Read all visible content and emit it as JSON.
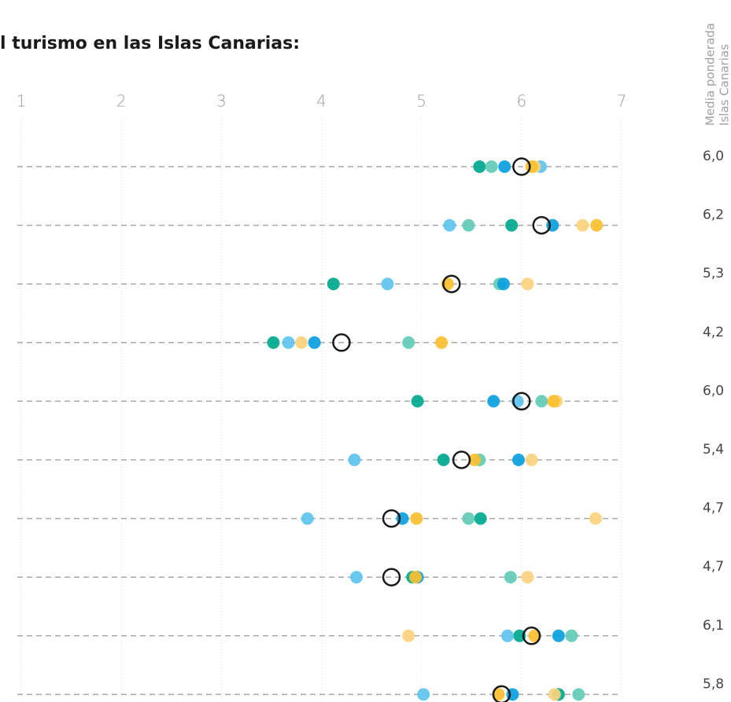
{
  "chart_data": {
    "type": "dot",
    "title": "l turismo en las Islas Canarias:",
    "mean_header": [
      "Media ponderada",
      "Islas Canarias"
    ],
    "categories": [
      null,
      null,
      null,
      null,
      null,
      null,
      null,
      null,
      null,
      null
    ],
    "xlim": [
      1,
      7
    ],
    "xticks": [
      1,
      2,
      3,
      4,
      5,
      6,
      7
    ],
    "grid": true,
    "series": [
      {
        "color": "#00a88e",
        "values": [
          5.58,
          5.9,
          4.12,
          3.52,
          4.96,
          5.22,
          5.59,
          4.91,
          5.98,
          6.37
        ]
      },
      {
        "color": "#62cbb6",
        "values": [
          5.7,
          5.47,
          5.78,
          4.87,
          6.2,
          5.58,
          5.47,
          5.89,
          6.5,
          6.57
        ]
      },
      {
        "color": "#0a9fe0",
        "values": [
          5.83,
          6.31,
          5.82,
          3.93,
          5.72,
          5.97,
          4.81,
          4.96,
          6.37,
          5.91
        ]
      },
      {
        "color": "#5ec4ee",
        "values": [
          6.19,
          5.28,
          4.66,
          3.67,
          5.96,
          4.33,
          3.86,
          4.35,
          5.86,
          5.02
        ]
      },
      {
        "color": "#fbd37f",
        "values": [
          6.13,
          6.61,
          6.06,
          3.8,
          6.35,
          6.1,
          6.74,
          6.06,
          4.87,
          6.33
        ]
      },
      {
        "color": "#fbbf2e",
        "values": [
          6.1,
          6.75,
          5.26,
          5.2,
          6.32,
          5.53,
          4.95,
          4.94,
          6.13,
          5.77
        ]
      }
    ],
    "mean": {
      "color": "#1a1a1a",
      "values": [
        6.0,
        6.2,
        5.3,
        4.2,
        6.0,
        5.4,
        4.7,
        4.7,
        6.1,
        5.8
      ],
      "value_labels": [
        "6,0",
        "6,2",
        "5,3",
        "4,2",
        "6,0",
        "5,4",
        "4,7",
        "4,7",
        "6,1",
        "5,8"
      ]
    }
  }
}
